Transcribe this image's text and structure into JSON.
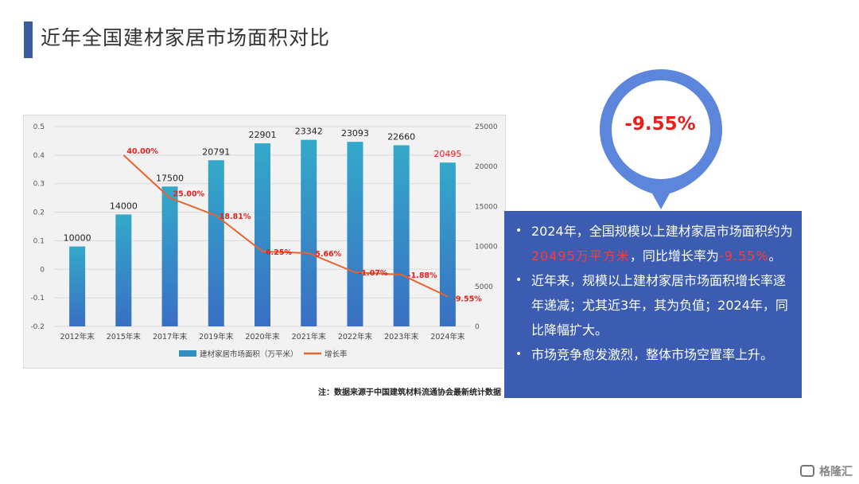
{
  "page": {
    "title": "近年全国建材家居市场面积对比",
    "source_note": "注：数据来源于中国建筑材料流通协会最新统计数据",
    "logo_text": "格隆汇",
    "accent_color": "#3b5c9c"
  },
  "callout": {
    "value": "-9.55%",
    "pin_color": "#5b86dc",
    "box_color": "#3b5cb0"
  },
  "info": {
    "item1": {
      "pre": "2024年，全国规模以上建材家居市场面积约为",
      "hl1": "20495万平方米",
      "mid": "，同比增长率为",
      "hl2": "-9.55%",
      "post": "。"
    },
    "item2": "近年来，规模以上建材家居市场面积增长率逐年递减；尤其近3年，其为负值；2024年，同比降幅扩大。",
    "item3": "市场竞争愈发激烈，整体市场空置率上升。",
    "bullet": "•"
  },
  "chart_data": {
    "type": "bar",
    "categories": [
      "2012年末",
      "2015年末",
      "2017年末",
      "2019年末",
      "2020年末",
      "2021年末",
      "2022年末",
      "2023年末",
      "2024年末"
    ],
    "series": [
      {
        "name": "建材家居市场面积（万平米）",
        "type": "bar",
        "axis": "right",
        "values": [
          10000,
          14000,
          17500,
          20791,
          22901,
          23342,
          23093,
          22660,
          20495
        ],
        "labels": [
          "10000",
          "14000",
          "17500",
          "20791",
          "22901",
          "23342",
          "23093",
          "22660",
          "20495"
        ],
        "color": "#2e8fc0"
      },
      {
        "name": "增长率",
        "type": "line",
        "axis": "left",
        "values": [
          null,
          0.4,
          0.25,
          0.1881,
          0.0625,
          0.0566,
          -0.0107,
          -0.0188,
          -0.0955
        ],
        "labels": [
          "",
          "40.00%",
          "25.00%",
          "18.81%",
          "6.25%",
          "5.66%",
          "-1.07%",
          "-1.88%",
          "-9.55%"
        ],
        "color": "#e8642c",
        "label_color": "#e8201c"
      }
    ],
    "left_axis": {
      "ylim": [
        -0.2,
        0.5
      ],
      "ticks": [
        "-0.2",
        "-0.1",
        "0",
        "0.1",
        "0.2",
        "0.3",
        "0.4",
        "0.5"
      ],
      "tick_values": [
        -0.2,
        -0.1,
        0,
        0.1,
        0.2,
        0.3,
        0.4,
        0.5
      ]
    },
    "right_axis": {
      "ylim": [
        0,
        25000
      ],
      "ticks": [
        "0",
        "5000",
        "10000",
        "15000",
        "20000",
        "25000"
      ],
      "tick_values": [
        0,
        5000,
        10000,
        15000,
        20000,
        25000
      ]
    },
    "highlight_label_color": "#e8201c",
    "legend_placement": "bottom",
    "grid": true
  }
}
